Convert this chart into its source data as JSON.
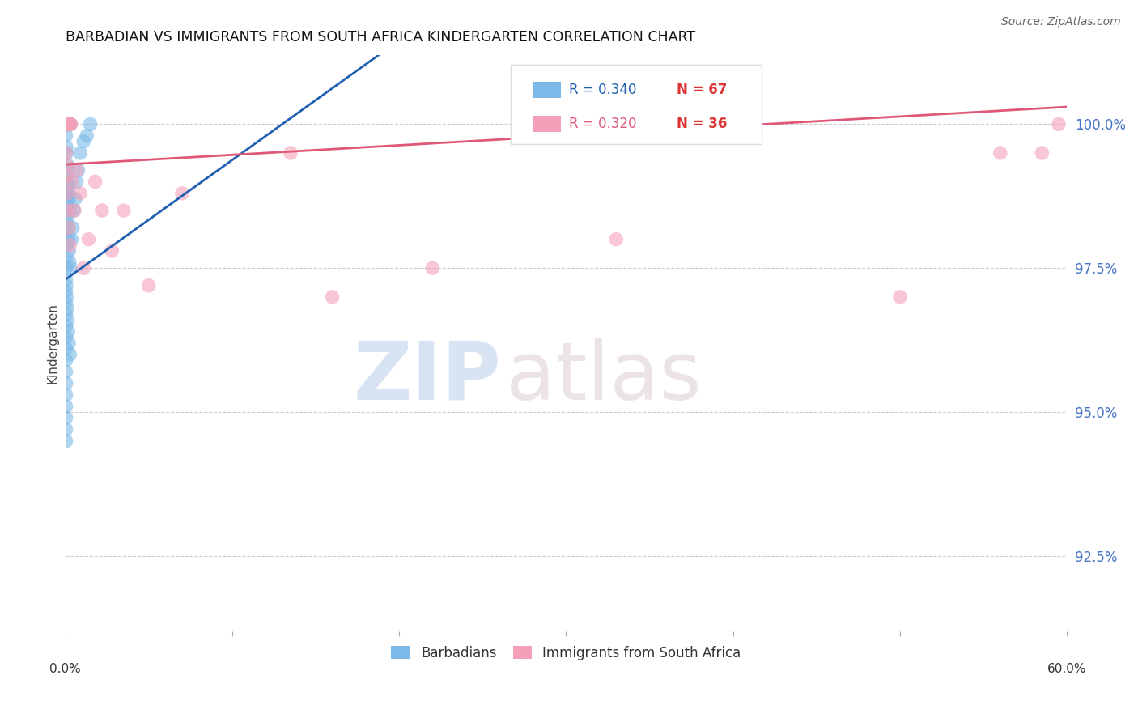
{
  "title": "BARBADIAN VS IMMIGRANTS FROM SOUTH AFRICA KINDERGARTEN CORRELATION CHART",
  "source": "Source: ZipAtlas.com",
  "ylabel_label": "Kindergarten",
  "y_ticks": [
    92.5,
    95.0,
    97.5,
    100.0
  ],
  "y_tick_labels": [
    "92.5%",
    "95.0%",
    "97.5%",
    "100.0%"
  ],
  "xlim": [
    0.0,
    60.0
  ],
  "ylim": [
    91.2,
    101.2
  ],
  "legend_r1": "R = 0.340",
  "legend_n1": "N = 67",
  "legend_r2": "R = 0.320",
  "legend_n2": "N = 36",
  "blue_color": "#7cb9e8",
  "pink_color": "#f4a0b8",
  "blue_line_color": "#2060b0",
  "pink_line_color": "#e05878",
  "watermark_zip": "ZIP",
  "watermark_atlas": "atlas",
  "blue_x": [
    0.05,
    0.08,
    0.1,
    0.12,
    0.15,
    0.18,
    0.2,
    0.22,
    0.25,
    0.3,
    0.05,
    0.07,
    0.09,
    0.11,
    0.13,
    0.16,
    0.19,
    0.21,
    0.24,
    0.28,
    0.05,
    0.06,
    0.08,
    0.1,
    0.14,
    0.17,
    0.2,
    0.23,
    0.26,
    0.05,
    0.05,
    0.05,
    0.05,
    0.05,
    0.05,
    0.05,
    0.05,
    0.05,
    0.05,
    0.05,
    0.05,
    0.05,
    0.05,
    0.05,
    0.05,
    0.05,
    0.05,
    0.05,
    0.05,
    0.07,
    0.09,
    0.12,
    0.15,
    0.18,
    0.22,
    0.28,
    0.32,
    0.38,
    0.45,
    0.52,
    0.6,
    0.68,
    0.78,
    0.9,
    1.1,
    1.3,
    1.5
  ],
  "blue_y": [
    100.0,
    100.0,
    100.0,
    100.0,
    100.0,
    100.0,
    100.0,
    100.0,
    100.0,
    100.0,
    99.8,
    99.6,
    99.5,
    99.3,
    99.2,
    99.0,
    98.9,
    98.8,
    98.7,
    98.5,
    99.1,
    98.9,
    98.7,
    98.6,
    98.4,
    98.2,
    98.0,
    97.8,
    97.6,
    98.3,
    98.1,
    97.9,
    97.7,
    97.5,
    97.3,
    97.1,
    96.9,
    96.7,
    96.5,
    96.3,
    96.1,
    95.9,
    95.7,
    95.5,
    95.3,
    95.1,
    94.9,
    94.7,
    94.5,
    97.2,
    97.0,
    96.8,
    96.6,
    96.4,
    96.2,
    96.0,
    97.5,
    98.0,
    98.2,
    98.5,
    98.7,
    99.0,
    99.2,
    99.5,
    99.7,
    99.8,
    100.0
  ],
  "pink_x": [
    0.05,
    0.08,
    0.1,
    0.12,
    0.15,
    0.2,
    0.25,
    0.3,
    0.35,
    0.05,
    0.07,
    0.09,
    0.14,
    0.18,
    0.22,
    0.28,
    0.4,
    0.55,
    0.7,
    0.9,
    1.1,
    1.4,
    1.8,
    2.2,
    2.8,
    3.5,
    5.0,
    7.0,
    13.5,
    16.0,
    22.0,
    33.0,
    50.0,
    56.0,
    58.5,
    59.5
  ],
  "pink_y": [
    100.0,
    100.0,
    100.0,
    100.0,
    100.0,
    100.0,
    100.0,
    100.0,
    100.0,
    99.5,
    99.3,
    99.1,
    98.8,
    98.5,
    98.2,
    97.9,
    99.0,
    98.5,
    99.2,
    98.8,
    97.5,
    98.0,
    99.0,
    98.5,
    97.8,
    98.5,
    97.2,
    98.8,
    99.5,
    97.0,
    97.5,
    98.0,
    97.0,
    99.5,
    99.5,
    100.0
  ]
}
